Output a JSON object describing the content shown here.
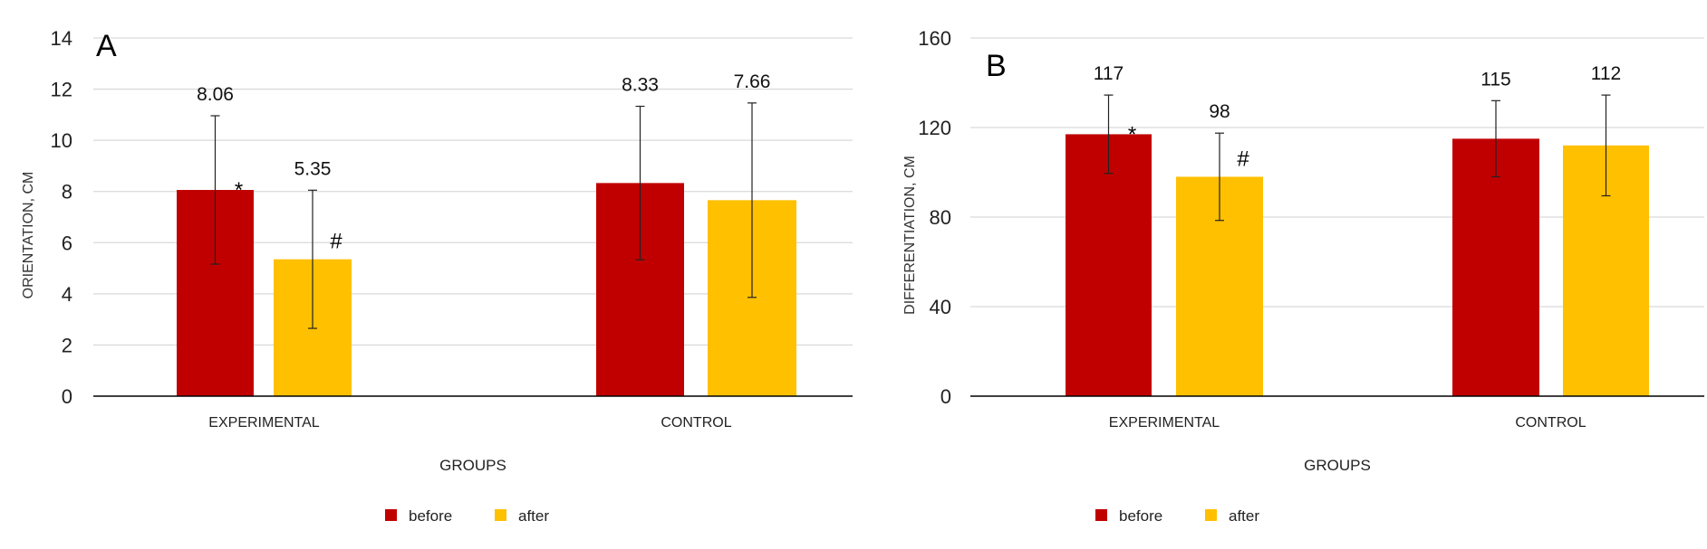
{
  "colors": {
    "before": "#C00000",
    "after": "#FFC000",
    "grid": "#DADADA",
    "axis": "#000000",
    "errorbar": "#222222"
  },
  "chart_data": [
    {
      "type": "bar",
      "panel_label": "A",
      "title": "",
      "xlabel": "GROUPS",
      "ylabel": "ORIENTATION, CM",
      "ylim": [
        0,
        14
      ],
      "yticks": [
        0,
        2,
        4,
        6,
        8,
        10,
        12,
        14
      ],
      "ytick_labels": [
        "0",
        "2",
        "4",
        "6",
        "8",
        "10",
        "12",
        "14"
      ],
      "grid": true,
      "legend_position": "bottom-center",
      "categories": [
        "EXPERIMENTAL",
        "CONTROL"
      ],
      "series": [
        {
          "name": "before",
          "values": [
            8.06,
            8.33
          ],
          "labels": [
            "8.06",
            "8.33"
          ],
          "errors": [
            2.9,
            3.0
          ],
          "markers": [
            "*",
            ""
          ]
        },
        {
          "name": "after",
          "values": [
            5.35,
            7.66
          ],
          "labels": [
            "5.35",
            "7.66"
          ],
          "errors": [
            2.7,
            3.8
          ],
          "markers": [
            "#",
            ""
          ]
        }
      ]
    },
    {
      "type": "bar",
      "panel_label": "B",
      "title": "",
      "xlabel": "GROUPS",
      "ylabel": "DIFFERENTIATION, CM",
      "ylim": [
        0,
        160
      ],
      "yticks": [
        0,
        40,
        80,
        120,
        160
      ],
      "ytick_labels": [
        "0",
        "40",
        "80",
        "120",
        "160"
      ],
      "grid": true,
      "legend_position": "bottom-center",
      "categories": [
        "EXPERIMENTAL",
        "CONTROL"
      ],
      "series": [
        {
          "name": "before",
          "values": [
            117,
            115
          ],
          "labels": [
            "117",
            "115"
          ],
          "errors": [
            17.5,
            17
          ],
          "markers": [
            "*",
            ""
          ]
        },
        {
          "name": "after",
          "values": [
            98,
            112
          ],
          "labels": [
            "98",
            "112"
          ],
          "errors": [
            19.5,
            22.5
          ],
          "markers": [
            "#",
            ""
          ]
        }
      ]
    }
  ]
}
